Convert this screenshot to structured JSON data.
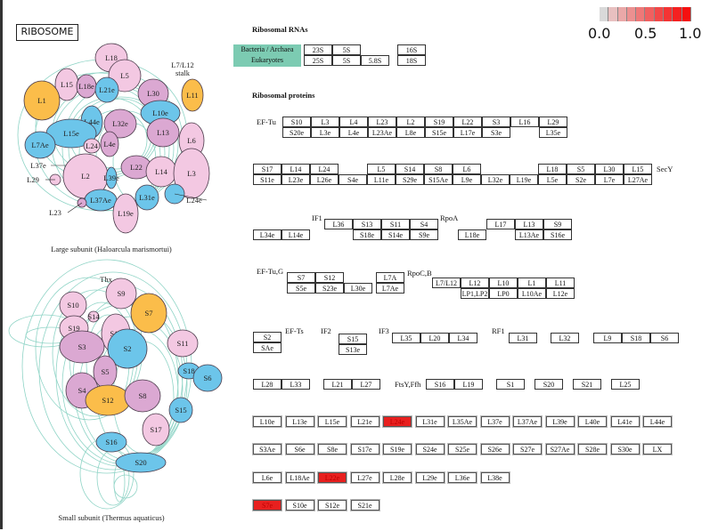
{
  "title": "RIBOSOME",
  "legend": {
    "ticks": [
      "0.0",
      "0.5",
      "1.0"
    ],
    "colors": [
      "#d9d9d9",
      "#e8c0c0",
      "#eaa8a8",
      "#ec9090",
      "#ee7878",
      "#f06060",
      "#f24848",
      "#f43434",
      "#f52020",
      "#f51010"
    ]
  },
  "highlight_color": "#e8201f",
  "rna": {
    "header": "Ribosomal RNAs",
    "legend_line1": "Bacteria / Archaea",
    "legend_line2": "Eukaryotes",
    "groups": {
      "large": [
        [
          "23S",
          "5S",
          null
        ],
        [
          "25S",
          "5S",
          "5.8S"
        ]
      ],
      "small": [
        [
          "16S"
        ],
        [
          "18S"
        ]
      ]
    }
  },
  "proteins_header": "Ribosomal proteins",
  "factor_labels": {
    "ef_tu": "EF-Tu",
    "secy": "SecY",
    "if1": "IF1",
    "rpoa": "RpoA",
    "ef_tug": "EF-Tu,G",
    "rpocb": "RpoC,B",
    "ef_ts": "EF-Ts",
    "if2": "IF2",
    "if3": "IF3",
    "rf1": "RF1",
    "ftsy": "FtsY,Ffh"
  },
  "groups": {
    "g1": [
      [
        "S10",
        "L3",
        "L4",
        "L23",
        "L2",
        "S19",
        "L22",
        "S3",
        "L16",
        "L29"
      ],
      [
        "S20e",
        "L3e",
        "L4e",
        "L23Ae",
        "L8e",
        "S15e",
        "L17e",
        "S3e",
        null,
        "L35e"
      ]
    ],
    "g2": [
      [
        "S17",
        "L14",
        "L24",
        null,
        "L5",
        "S14",
        "S8",
        "L6",
        null,
        null,
        "L18",
        "S5",
        "L30",
        "L15"
      ],
      [
        "S11e",
        "L23e",
        "L26e",
        "S4e",
        "L11e",
        "S29e",
        "S15Ae",
        "L9e",
        "L32e",
        "L19e",
        "L5e",
        "S2e",
        "L7e",
        "L27Ae"
      ]
    ],
    "g3": [
      [
        "L34e",
        "L14e"
      ]
    ],
    "g4": [
      [
        "L36",
        "S13",
        "S11",
        "S4"
      ],
      [
        null,
        "S18e",
        "S14e",
        "S9e"
      ]
    ],
    "g5": [
      [
        null,
        "L17",
        "L13",
        "S9"
      ],
      [
        "L18e",
        null,
        "L13Ae",
        "S16e"
      ]
    ],
    "g6": [
      [
        "S7",
        "S12",
        null
      ],
      [
        "S5e",
        "S23e",
        "L30e"
      ]
    ],
    "g7": [
      [
        "L7A"
      ],
      [
        "L7Ae"
      ]
    ],
    "g8": [
      [
        "L7/L12",
        "L12",
        "L10",
        "L1",
        "L11"
      ],
      [
        null,
        "LP1,LP2",
        "LP0",
        "L10Ae",
        "L12e"
      ]
    ],
    "g9": [
      [
        "S2"
      ],
      [
        "SAe"
      ]
    ],
    "g10": [
      [
        "S15"
      ],
      [
        "S13e"
      ]
    ],
    "g11": [
      [
        "L35",
        "L20",
        "L34"
      ]
    ],
    "g12": [
      [
        "L31"
      ]
    ],
    "g13": [
      [
        "L32"
      ]
    ],
    "g14": [
      [
        "L9",
        "S18",
        "S6"
      ]
    ],
    "g15": [
      [
        "L28",
        "L33"
      ]
    ],
    "g16": [
      [
        "L21",
        "L27"
      ]
    ],
    "g17": [
      [
        "S16",
        "L19"
      ]
    ],
    "g18": [
      [
        "S1"
      ]
    ],
    "g19": [
      [
        "S20"
      ]
    ],
    "g20": [
      [
        "S21"
      ]
    ],
    "g21": [
      [
        "L25"
      ]
    ]
  },
  "eukaryotic_lists": [
    [
      "L10e",
      "L13e",
      "L15e",
      "L21e",
      "L24e",
      "L31e",
      "L35Ae",
      "L37e",
      "L37Ae",
      "L39e",
      "L40e",
      "L41e",
      "L44e"
    ],
    [
      "S3Ae",
      "S6e",
      "S8e",
      "S17e",
      "S19e",
      "S24e",
      "S25e",
      "S26e",
      "S27e",
      "S27Ae",
      "S28e",
      "S30e",
      "LX"
    ],
    [
      "L6e",
      "L18Ae",
      "L22e",
      "L27e",
      "L28e",
      "L29e",
      "L36e",
      "L38e"
    ],
    [
      "S7e",
      "S10e",
      "S12e",
      "S21e"
    ]
  ],
  "highlighted": [
    "L24e",
    "L22e",
    "S7e"
  ],
  "large_subunit": {
    "caption": "Large subunit (Haloarcula marismortui)",
    "stalk_label_1": "L7/L12",
    "stalk_label_2": "stalk",
    "proteins": [
      "L18",
      "L5",
      "L15",
      "L18e",
      "L21e",
      "L30",
      "L11",
      "L1",
      "L10e",
      "L44e",
      "L32e",
      "L15e",
      "L13",
      "L6",
      "L7Ae",
      "L24",
      "L4e",
      "L37e",
      "L22",
      "L14",
      "L3",
      "L29",
      "L2",
      "L39e",
      "L37Ae",
      "L31e",
      "L24e",
      "L23",
      "L19e"
    ]
  },
  "small_subunit": {
    "caption": "Small subunit (Thermus aquaticus)",
    "thx_label": "Thx",
    "proteins": [
      "S9",
      "S10",
      "S7",
      "S14",
      "S19",
      "S13",
      "S3",
      "S2",
      "S11",
      "S18",
      "S6",
      "S5",
      "S4",
      "S12",
      "S8",
      "S15",
      "S17",
      "S16",
      "S20"
    ]
  },
  "colors": {
    "pink": "#f3c8e2",
    "mauve": "#dba8d2",
    "blue": "#6cc5ea",
    "orange": "#fbbd4a",
    "rna_strand": "#8fd4c6"
  }
}
